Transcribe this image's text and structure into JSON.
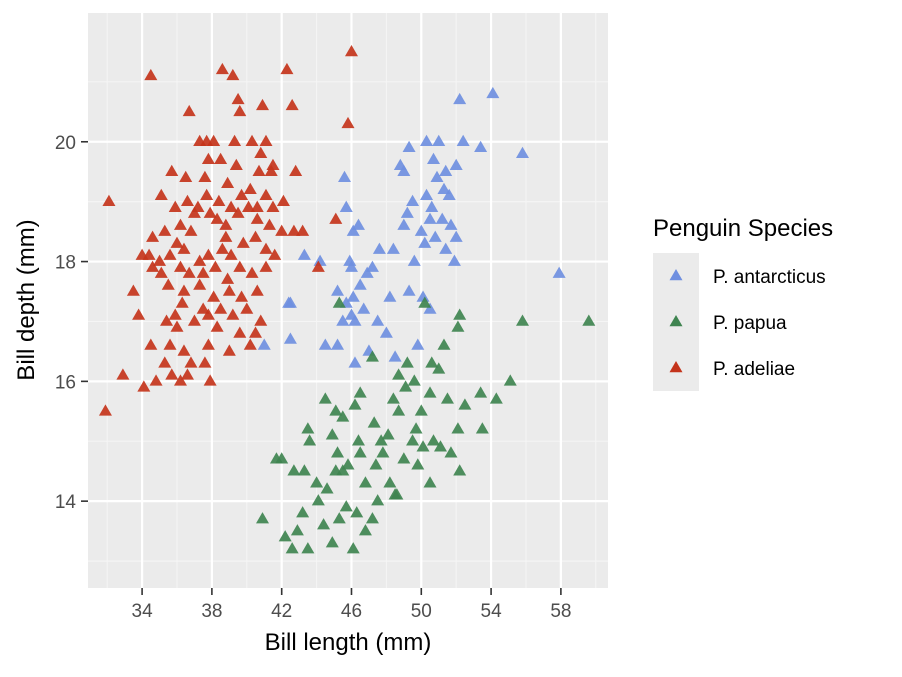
{
  "chart_data": {
    "type": "scatter",
    "title": "",
    "xlabel": "Bill length (mm)",
    "ylabel": "Bill depth (mm)",
    "xlim": [
      30.9,
      60.7
    ],
    "ylim": [
      12.55,
      22.15
    ],
    "x_ticks": [
      34,
      38,
      42,
      46,
      50,
      54,
      58
    ],
    "y_ticks": [
      14,
      16,
      18,
      20
    ],
    "grid": true,
    "legend": {
      "title": "Penguin Species",
      "placement": "right"
    },
    "marker": "triangle",
    "series": [
      {
        "name": "P. antarcticus",
        "color": "#6f8fe0",
        "points": [
          [
            52.2,
            20.7
          ],
          [
            54.1,
            20.8
          ],
          [
            49.3,
            19.9
          ],
          [
            50.3,
            20.0
          ],
          [
            51.0,
            20.0
          ],
          [
            53.4,
            19.9
          ],
          [
            52.4,
            20.0
          ],
          [
            48.8,
            19.6
          ],
          [
            49.0,
            19.5
          ],
          [
            50.7,
            19.7
          ],
          [
            51.4,
            19.5
          ],
          [
            52.0,
            19.6
          ],
          [
            55.8,
            19.8
          ],
          [
            45.6,
            19.4
          ],
          [
            50.9,
            19.4
          ],
          [
            49.5,
            19.0
          ],
          [
            50.3,
            19.1
          ],
          [
            51.6,
            19.1
          ],
          [
            50.6,
            18.9
          ],
          [
            51.3,
            19.2
          ],
          [
            45.7,
            18.9
          ],
          [
            49.2,
            18.8
          ],
          [
            50.5,
            18.7
          ],
          [
            51.2,
            18.7
          ],
          [
            46.1,
            18.5
          ],
          [
            49.0,
            18.6
          ],
          [
            50.0,
            18.5
          ],
          [
            51.7,
            18.6
          ],
          [
            50.8,
            18.4
          ],
          [
            52.0,
            18.4
          ],
          [
            45.9,
            18.0
          ],
          [
            47.6,
            18.2
          ],
          [
            48.4,
            18.2
          ],
          [
            50.2,
            18.3
          ],
          [
            51.4,
            18.2
          ],
          [
            43.3,
            18.1
          ],
          [
            44.2,
            18.0
          ],
          [
            46.0,
            17.9
          ],
          [
            47.2,
            17.9
          ],
          [
            49.6,
            18.0
          ],
          [
            51.9,
            18.0
          ],
          [
            46.5,
            17.6
          ],
          [
            46.9,
            17.8
          ],
          [
            45.2,
            17.5
          ],
          [
            46.1,
            17.4
          ],
          [
            48.2,
            17.4
          ],
          [
            49.3,
            17.5
          ],
          [
            50.1,
            17.4
          ],
          [
            42.4,
            17.3
          ],
          [
            42.5,
            17.3
          ],
          [
            45.5,
            17.0
          ],
          [
            46.0,
            17.1
          ],
          [
            46.7,
            17.2
          ],
          [
            47.5,
            17.0
          ],
          [
            50.5,
            17.2
          ],
          [
            42.5,
            16.7
          ],
          [
            44.5,
            16.6
          ],
          [
            45.2,
            16.6
          ],
          [
            47.0,
            16.5
          ],
          [
            48.0,
            16.8
          ],
          [
            49.8,
            16.6
          ],
          [
            41.0,
            16.6
          ],
          [
            46.2,
            16.3
          ],
          [
            48.5,
            16.4
          ],
          [
            57.9,
            17.8
          ],
          [
            46.2,
            17.0
          ],
          [
            46.4,
            18.6
          ],
          [
            45.7,
            17.3
          ]
        ]
      },
      {
        "name": "P. papua",
        "color": "#3f8450",
        "points": [
          [
            45.3,
            17.3
          ],
          [
            50.2,
            17.3
          ],
          [
            52.2,
            17.1
          ],
          [
            52.1,
            16.9
          ],
          [
            55.8,
            17.0
          ],
          [
            59.6,
            17.0
          ],
          [
            51.3,
            16.6
          ],
          [
            50.6,
            16.3
          ],
          [
            49.2,
            16.3
          ],
          [
            51.0,
            16.2
          ],
          [
            47.2,
            16.4
          ],
          [
            48.7,
            16.1
          ],
          [
            49.1,
            15.9
          ],
          [
            50.5,
            15.8
          ],
          [
            49.6,
            16.0
          ],
          [
            55.1,
            16.0
          ],
          [
            54.3,
            15.7
          ],
          [
            53.4,
            15.8
          ],
          [
            50.0,
            15.5
          ],
          [
            51.5,
            15.7
          ],
          [
            48.4,
            15.7
          ],
          [
            48.7,
            15.5
          ],
          [
            46.5,
            15.8
          ],
          [
            46.2,
            15.6
          ],
          [
            44.5,
            15.7
          ],
          [
            45.1,
            15.5
          ],
          [
            43.5,
            15.2
          ],
          [
            45.5,
            15.4
          ],
          [
            47.3,
            15.3
          ],
          [
            48.1,
            15.1
          ],
          [
            49.5,
            15.0
          ],
          [
            50.7,
            15.0
          ],
          [
            51.1,
            14.9
          ],
          [
            52.5,
            15.6
          ],
          [
            52.1,
            15.2
          ],
          [
            50.1,
            14.9
          ],
          [
            49.7,
            15.2
          ],
          [
            47.7,
            15.0
          ],
          [
            46.4,
            15.0
          ],
          [
            45.2,
            14.8
          ],
          [
            44.9,
            15.1
          ],
          [
            43.6,
            15.0
          ],
          [
            42.7,
            14.5
          ],
          [
            43.3,
            14.5
          ],
          [
            44.0,
            14.3
          ],
          [
            44.6,
            14.2
          ],
          [
            45.5,
            14.5
          ],
          [
            46.8,
            14.3
          ],
          [
            47.4,
            14.6
          ],
          [
            48.2,
            14.3
          ],
          [
            48.5,
            14.1
          ],
          [
            47.5,
            14.0
          ],
          [
            46.3,
            13.8
          ],
          [
            45.3,
            13.7
          ],
          [
            44.4,
            13.6
          ],
          [
            43.2,
            13.8
          ],
          [
            42.9,
            13.5
          ],
          [
            42.2,
            13.4
          ],
          [
            43.5,
            13.2
          ],
          [
            44.1,
            14.0
          ],
          [
            45.7,
            13.9
          ],
          [
            46.8,
            13.5
          ],
          [
            48.6,
            14.1
          ],
          [
            50.5,
            14.3
          ],
          [
            52.2,
            14.5
          ],
          [
            40.9,
            13.7
          ],
          [
            42.6,
            13.2
          ],
          [
            46.1,
            13.2
          ],
          [
            45.8,
            14.6
          ],
          [
            46.5,
            14.8
          ],
          [
            47.8,
            14.8
          ],
          [
            49.0,
            14.7
          ],
          [
            49.8,
            14.6
          ],
          [
            51.7,
            14.8
          ],
          [
            53.5,
            15.2
          ],
          [
            42.0,
            14.7
          ],
          [
            41.7,
            14.7
          ],
          [
            45.1,
            14.5
          ],
          [
            47.2,
            13.7
          ],
          [
            44.9,
            13.3
          ]
        ]
      },
      {
        "name": "P. adeliae",
        "color": "#c4341b",
        "points": [
          [
            34.5,
            21.1
          ],
          [
            38.6,
            21.2
          ],
          [
            39.2,
            21.1
          ],
          [
            42.3,
            21.2
          ],
          [
            46.0,
            21.5
          ],
          [
            39.5,
            20.7
          ],
          [
            39.6,
            20.5
          ],
          [
            40.9,
            20.6
          ],
          [
            42.6,
            20.6
          ],
          [
            36.7,
            20.5
          ],
          [
            45.8,
            20.3
          ],
          [
            37.3,
            20.0
          ],
          [
            37.7,
            20.0
          ],
          [
            38.1,
            20.0
          ],
          [
            39.3,
            20.0
          ],
          [
            40.3,
            20.0
          ],
          [
            41.1,
            20.0
          ],
          [
            40.8,
            19.8
          ],
          [
            37.8,
            19.7
          ],
          [
            38.5,
            19.7
          ],
          [
            39.4,
            19.6
          ],
          [
            41.5,
            19.6
          ],
          [
            42.8,
            19.5
          ],
          [
            35.7,
            19.5
          ],
          [
            36.5,
            19.4
          ],
          [
            37.6,
            19.4
          ],
          [
            38.9,
            19.3
          ],
          [
            40.2,
            19.2
          ],
          [
            41.4,
            19.5
          ],
          [
            32.1,
            19.0
          ],
          [
            35.1,
            19.1
          ],
          [
            35.9,
            18.9
          ],
          [
            36.6,
            19.0
          ],
          [
            37.2,
            18.9
          ],
          [
            37.7,
            19.1
          ],
          [
            38.4,
            19.0
          ],
          [
            39.1,
            18.9
          ],
          [
            39.7,
            19.1
          ],
          [
            40.6,
            18.9
          ],
          [
            41.1,
            19.1
          ],
          [
            41.5,
            18.9
          ],
          [
            34.6,
            18.4
          ],
          [
            35.3,
            18.5
          ],
          [
            36.2,
            18.6
          ],
          [
            36.8,
            18.5
          ],
          [
            37.0,
            18.8
          ],
          [
            37.9,
            18.8
          ],
          [
            38.3,
            18.7
          ],
          [
            38.8,
            18.6
          ],
          [
            39.5,
            18.8
          ],
          [
            40.1,
            18.9
          ],
          [
            40.6,
            18.7
          ],
          [
            41.3,
            18.6
          ],
          [
            42.0,
            18.5
          ],
          [
            42.7,
            18.5
          ],
          [
            43.2,
            18.5
          ],
          [
            34.0,
            18.1
          ],
          [
            34.4,
            18.1
          ],
          [
            35.0,
            18.0
          ],
          [
            35.6,
            18.1
          ],
          [
            36.0,
            18.3
          ],
          [
            36.4,
            18.2
          ],
          [
            37.3,
            18.0
          ],
          [
            37.8,
            18.1
          ],
          [
            38.6,
            18.2
          ],
          [
            39.1,
            18.1
          ],
          [
            39.8,
            18.3
          ],
          [
            40.5,
            18.4
          ],
          [
            41.1,
            18.2
          ],
          [
            41.6,
            18.1
          ],
          [
            34.6,
            17.9
          ],
          [
            35.1,
            17.8
          ],
          [
            36.2,
            17.9
          ],
          [
            36.7,
            17.8
          ],
          [
            37.5,
            17.8
          ],
          [
            38.2,
            17.9
          ],
          [
            38.9,
            17.7
          ],
          [
            39.6,
            17.9
          ],
          [
            40.3,
            17.8
          ],
          [
            41.1,
            17.9
          ],
          [
            35.5,
            17.6
          ],
          [
            36.4,
            17.5
          ],
          [
            37.3,
            17.6
          ],
          [
            38.1,
            17.4
          ],
          [
            39.0,
            17.5
          ],
          [
            39.7,
            17.4
          ],
          [
            40.6,
            17.5
          ],
          [
            36.3,
            17.3
          ],
          [
            37.5,
            17.2
          ],
          [
            38.5,
            17.2
          ],
          [
            39.2,
            17.1
          ],
          [
            40.0,
            17.2
          ],
          [
            40.8,
            17.0
          ],
          [
            33.8,
            17.1
          ],
          [
            35.4,
            17.0
          ],
          [
            36.0,
            16.9
          ],
          [
            37.0,
            17.0
          ],
          [
            38.3,
            16.9
          ],
          [
            39.6,
            16.8
          ],
          [
            40.5,
            16.8
          ],
          [
            34.5,
            16.6
          ],
          [
            35.6,
            16.6
          ],
          [
            36.4,
            16.5
          ],
          [
            37.8,
            16.6
          ],
          [
            39.0,
            16.5
          ],
          [
            40.2,
            16.6
          ],
          [
            35.3,
            16.3
          ],
          [
            36.8,
            16.3
          ],
          [
            37.6,
            16.3
          ],
          [
            32.9,
            16.1
          ],
          [
            34.8,
            16.0
          ],
          [
            35.7,
            16.1
          ],
          [
            36.2,
            16.0
          ],
          [
            37.9,
            16.0
          ],
          [
            31.9,
            15.5
          ],
          [
            34.1,
            15.9
          ],
          [
            36.6,
            16.1
          ],
          [
            44.1,
            17.9
          ],
          [
            45.1,
            18.7
          ],
          [
            40.7,
            19.5
          ],
          [
            42.1,
            19.0
          ],
          [
            38.8,
            18.4
          ],
          [
            35.9,
            17.1
          ],
          [
            33.5,
            17.5
          ],
          [
            37.8,
            17.1
          ]
        ]
      }
    ]
  }
}
